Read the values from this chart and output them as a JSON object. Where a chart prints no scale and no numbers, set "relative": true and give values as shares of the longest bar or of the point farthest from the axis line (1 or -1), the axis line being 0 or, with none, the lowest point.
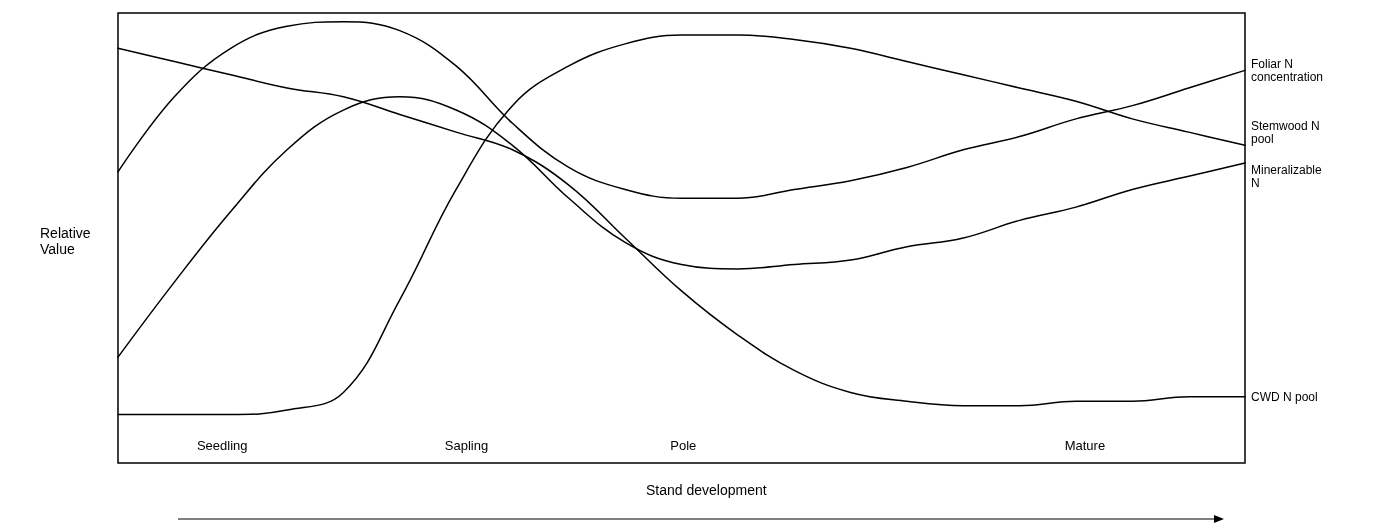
{
  "chart_data": {
    "type": "line",
    "relative": true,
    "xlabel": "Stand development",
    "ylabel": "Relative Value",
    "categories": [
      null,
      null,
      null,
      null,
      null,
      null,
      null,
      null,
      null,
      null,
      null,
      null,
      null,
      null,
      null,
      null,
      null,
      null,
      null,
      null,
      null
    ],
    "annotations": [
      "Seedling",
      "Sapling",
      "Pole",
      "Mature"
    ],
    "marker": "none",
    "line_style": "solid",
    "legend": false,
    "grid": false,
    "series": [
      {
        "name": "Foliar N concentration",
        "color": "#000000",
        "values": [
          0.66,
          0.83,
          0.94,
          0.99,
          1.0,
          0.98,
          0.9,
          0.77,
          0.67,
          0.62,
          0.6,
          0.6,
          0.62,
          0.64,
          0.67,
          0.71,
          0.74,
          0.78,
          0.81,
          0.85,
          0.89
        ]
      },
      {
        "name": "Stemwood N pool",
        "color": "#000000",
        "values": [
          0.11,
          0.11,
          0.11,
          0.12,
          0.16,
          0.37,
          0.62,
          0.81,
          0.9,
          0.95,
          0.97,
          0.97,
          0.96,
          0.94,
          0.91,
          0.88,
          0.85,
          0.82,
          0.78,
          0.75,
          0.72
        ]
      },
      {
        "name": "Mineralizable N",
        "color": "#000000",
        "values": [
          0.24,
          0.41,
          0.57,
          0.71,
          0.8,
          0.83,
          0.8,
          0.72,
          0.6,
          0.5,
          0.45,
          0.44,
          0.45,
          0.46,
          0.49,
          0.51,
          0.55,
          0.58,
          0.62,
          0.65,
          0.68
        ]
      },
      {
        "name": "CWD N pool",
        "color": "#000000",
        "values": [
          0.94,
          0.91,
          0.88,
          0.85,
          0.83,
          0.79,
          0.75,
          0.71,
          0.63,
          0.51,
          0.39,
          0.29,
          0.21,
          0.16,
          0.14,
          0.13,
          0.13,
          0.14,
          0.14,
          0.15,
          0.15
        ]
      }
    ]
  }
}
